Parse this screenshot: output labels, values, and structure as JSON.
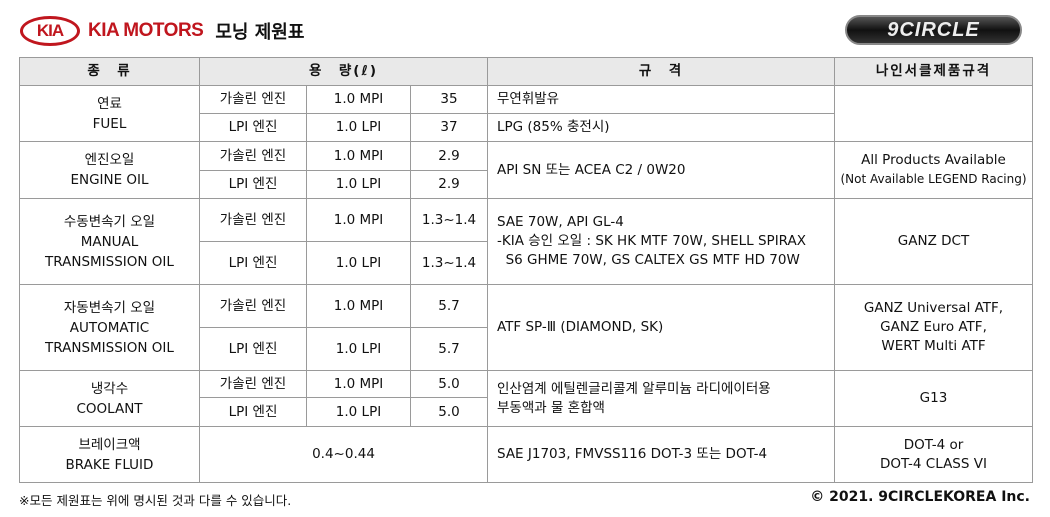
{
  "header": {
    "logo_text": "KIA",
    "brand": "KIA MOTORS",
    "title": "모닝 제원표",
    "partner_logo": "9CIRCLE"
  },
  "columns": [
    "종　류",
    "용　량(ℓ)",
    "규　격",
    "나인서클제품규격"
  ],
  "rows": [
    {
      "ko": "연료",
      "en": "FUEL",
      "sub": [
        {
          "engine": "가솔린 엔진",
          "type": "1.0 MPI",
          "cap": "35",
          "spec": "무연휘발유"
        },
        {
          "engine": "LPI 엔진",
          "type": "1.0 LPI",
          "cap": "37",
          "spec": "LPG (85% 충전시)"
        }
      ],
      "product": ""
    },
    {
      "ko": "엔진오일",
      "en": "ENGINE OIL",
      "sub": [
        {
          "engine": "가솔린 엔진",
          "type": "1.0 MPI",
          "cap": "2.9"
        },
        {
          "engine": "LPI 엔진",
          "type": "1.0 LPI",
          "cap": "2.9"
        }
      ],
      "spec": "API SN 또는 ACEA C2 / 0W20",
      "product": "All Products Available",
      "product_note": "(Not Available LEGEND Racing)"
    },
    {
      "ko": "수동변속기 오일",
      "en": "MANUAL TRANSMISSION OIL",
      "sub": [
        {
          "engine": "가솔린 엔진",
          "type": "1.0 MPI",
          "cap": "1.3~1.4"
        },
        {
          "engine": "LPI 엔진",
          "type": "1.0 LPI",
          "cap": "1.3~1.4"
        }
      ],
      "spec": [
        "SAE 70W, API GL-4",
        "-KIA 승인 오일 : SK HK MTF 70W, SHELL SPIRAX",
        "  S6 GHME 70W, GS CALTEX GS MTF HD 70W"
      ],
      "product": "GANZ DCT"
    },
    {
      "ko": "자동변속기 오일",
      "en": "AUTOMATIC TRANSMISSION OIL",
      "sub": [
        {
          "engine": "가솔린 엔진",
          "type": "1.0 MPI",
          "cap": "5.7"
        },
        {
          "engine": "LPI 엔진",
          "type": "1.0 LPI",
          "cap": "5.7"
        }
      ],
      "spec": "ATF SP-Ⅲ (DIAMOND, SK)",
      "product": [
        "GANZ Universal ATF,",
        "GANZ Euro ATF,",
        "WERT Multi ATF"
      ]
    },
    {
      "ko": "냉각수",
      "en": "COOLANT",
      "sub": [
        {
          "engine": "가솔린 엔진",
          "type": "1.0 MPI",
          "cap": "5.0"
        },
        {
          "engine": "LPI 엔진",
          "type": "1.0 LPI",
          "cap": "5.0"
        }
      ],
      "spec": [
        "인산염계 에틸렌글리콜계 알루미늄 라디에이터용",
        "부동액과 물 혼합액"
      ],
      "product": "G13"
    },
    {
      "ko": "브레이크액",
      "en": "BRAKE FLUID",
      "cap": "0.4~0.44",
      "spec": "SAE J1703, FMVSS116 DOT-3 또는 DOT-4",
      "product": [
        "DOT-4 or",
        "DOT-4 CLASS VI"
      ]
    }
  ],
  "footer": {
    "note": "※모든 제원표는 위에 명시된 것과 다를 수 있습니다.",
    "copyright": "© 2021. 9CIRCLEKOREA Inc."
  }
}
